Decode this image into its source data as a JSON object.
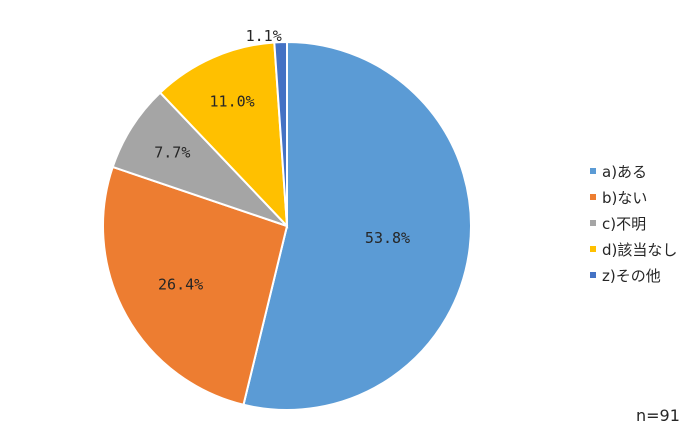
{
  "chart_data": {
    "type": "pie",
    "slices": [
      {
        "label": "a)ある",
        "value": 53.8,
        "value_label": "53.8%",
        "color": "#5B9BD5"
      },
      {
        "label": "b)ない",
        "value": 26.4,
        "value_label": "26.4%",
        "color": "#ED7D31"
      },
      {
        "label": "c)不明",
        "value": 7.7,
        "value_label": "7.7%",
        "color": "#A5A5A5"
      },
      {
        "label": "d)該当なし",
        "value": 11.0,
        "value_label": "11.0%",
        "color": "#FFC000"
      },
      {
        "label": "z)その他",
        "value": 1.1,
        "value_label": "1.1%",
        "color": "#4472C4"
      }
    ],
    "start": "12 o'clock",
    "direction": "clockwise",
    "legend_position": "right",
    "sample_size": "n=91"
  }
}
